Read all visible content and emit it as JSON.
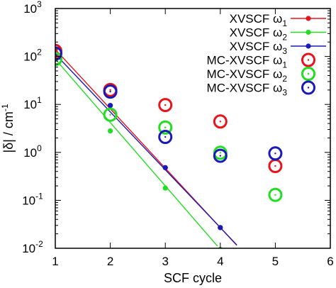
{
  "chart_data": {
    "type": "scatter",
    "xlabel": "SCF cycle",
    "ylabel": "|δ| / cm",
    "ylabel_sup": "-1",
    "xlim": [
      1,
      6
    ],
    "ylim": [
      0.01,
      1000
    ],
    "yscale": "log",
    "x_ticks": [
      1,
      2,
      3,
      4,
      5,
      6
    ],
    "x_tick_labels": [
      "1",
      "2",
      "3",
      "4",
      "5",
      "6"
    ],
    "y_ticks": [
      0.01,
      0.1,
      1,
      10,
      100,
      1000
    ],
    "y_tick_labels": [
      {
        "base": "10",
        "exp": "-2"
      },
      {
        "base": "10",
        "exp": "-1"
      },
      {
        "base": "10",
        "exp": "0"
      },
      {
        "base": "10",
        "exp": "1"
      },
      {
        "base": "10",
        "exp": "2"
      },
      {
        "base": "10",
        "exp": "3"
      }
    ],
    "legend_position": "top-right",
    "series": [
      {
        "name": "XVSCF ω1",
        "legend_main": "XVSCF ω",
        "legend_sub": "1",
        "style": "line-points",
        "color": "#e8141c",
        "x": [
          1,
          2,
          3,
          4
        ],
        "y": [
          140,
          9.5,
          0.48,
          0.027
        ],
        "line_extend_to": 4.3
      },
      {
        "name": "XVSCF ω2",
        "legend_main": "XVSCF ω",
        "legend_sub": "2",
        "style": "line-points",
        "color": "#22dd22",
        "x": [
          1,
          2,
          3,
          4
        ],
        "y": [
          88,
          2.8,
          0.18,
          0.0095
        ],
        "line_extend_to": 3.95
      },
      {
        "name": "XVSCF ω3",
        "legend_main": "XVSCF ω",
        "legend_sub": "3",
        "style": "line-points",
        "color": "#1a1ab8",
        "x": [
          1,
          2,
          3,
          4
        ],
        "y": [
          112,
          9.5,
          0.48,
          0.027
        ],
        "line_extend_to": 4.3
      },
      {
        "name": "MC-XVSCF ω1",
        "legend_main": "MC-XVSCF ω",
        "legend_sub": "1",
        "style": "open-circle",
        "color": "#e8141c",
        "x": [
          1,
          2,
          3,
          4,
          5
        ],
        "y": [
          130,
          20,
          9.7,
          4.4,
          0.52
        ]
      },
      {
        "name": "MC-XVSCF ω2",
        "legend_main": "MC-XVSCF ω",
        "legend_sub": "2",
        "style": "open-circle",
        "color": "#22dd22",
        "x": [
          1,
          2,
          3,
          4,
          5
        ],
        "y": [
          88,
          6.1,
          3.3,
          0.98,
          0.13
        ]
      },
      {
        "name": "MC-XVSCF ω3",
        "legend_main": "MC-XVSCF ω",
        "legend_sub": "3",
        "style": "open-circle",
        "color": "#1a1ab8",
        "x": [
          1,
          2,
          3,
          4,
          5
        ],
        "y": [
          115,
          18.5,
          2.1,
          0.85,
          0.95
        ]
      }
    ]
  }
}
